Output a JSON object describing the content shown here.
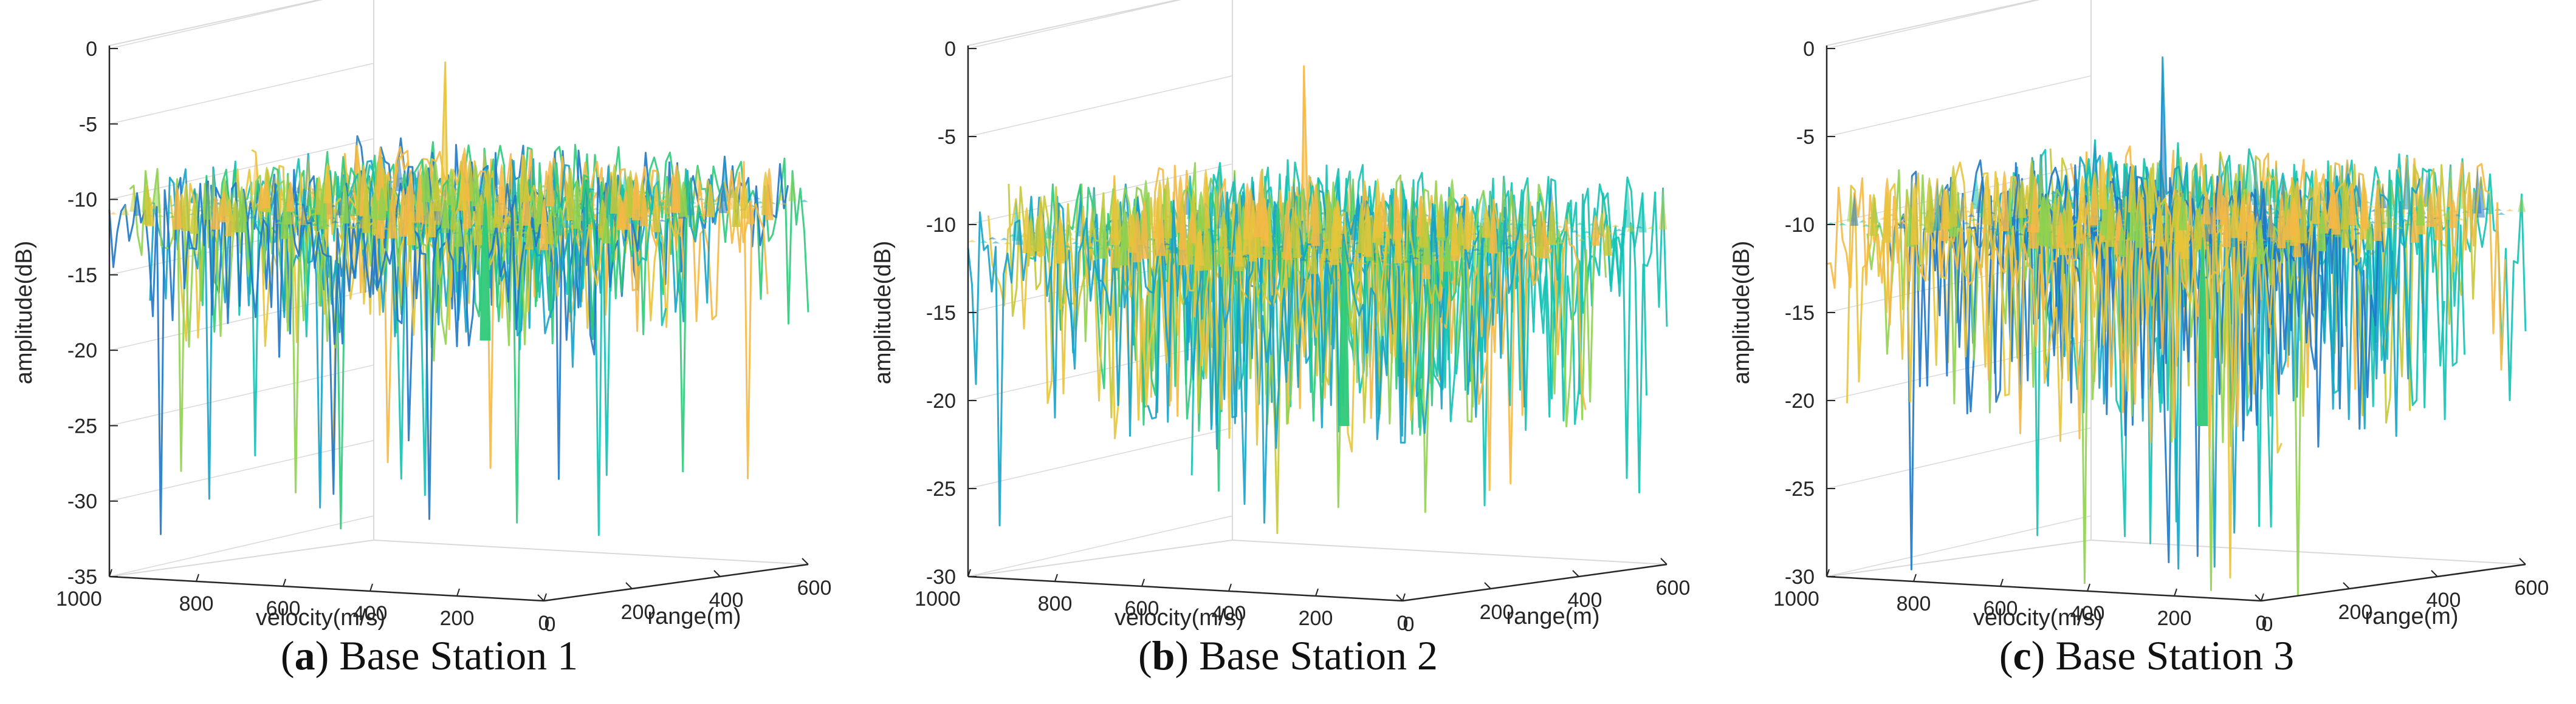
{
  "chart_data": [
    {
      "type": "surface3d",
      "caption_letter": "a",
      "caption_text": " Base Station 1",
      "zlabel": "amplitude(dB)",
      "xlabel": "velocity(m/s)",
      "ylabel": "range(m)",
      "zlim": [
        -35,
        0
      ],
      "z_ticks": [
        "0",
        "-5",
        "-10",
        "-15",
        "-20",
        "-25",
        "-30",
        "-35"
      ],
      "velocity_ticks": [
        "1000",
        "800",
        "600",
        "400",
        "200",
        "0"
      ],
      "range_ticks": [
        "0",
        "200",
        "400",
        "600"
      ],
      "surface": {
        "base_level": -8,
        "floor_range": [
          -20,
          -10
        ],
        "peak": -1.5,
        "deep_nulls": [
          -32,
          -30,
          -29,
          -28
        ]
      }
    },
    {
      "type": "surface3d",
      "caption_letter": "b",
      "caption_text": " Base Station 2",
      "zlabel": "amplitude(dB)",
      "xlabel": "velocity(m/s)",
      "ylabel": "range(m)",
      "zlim": [
        -30,
        0
      ],
      "z_ticks": [
        "0",
        "-5",
        "-10",
        "-15",
        "-20",
        "-25",
        "-30"
      ],
      "velocity_ticks": [
        "1000",
        "800",
        "600",
        "400",
        "200",
        "0"
      ],
      "range_ticks": [
        "0",
        "200",
        "400",
        "600"
      ],
      "surface": {
        "base_level": -8,
        "floor_range": [
          -22,
          -13
        ],
        "peak": -1.5,
        "deep_nulls": [
          -27,
          -26,
          -25
        ]
      }
    },
    {
      "type": "surface3d",
      "caption_letter": "c",
      "caption_text": " Base Station 3",
      "zlabel": "amplitude(dB)",
      "xlabel": "velocity(m/s)",
      "ylabel": "range(m)",
      "zlim": [
        -30,
        0
      ],
      "z_ticks": [
        "0",
        "-5",
        "-10",
        "-15",
        "-20",
        "-25",
        "-30"
      ],
      "velocity_ticks": [
        "1000",
        "800",
        "600",
        "400",
        "200",
        "0"
      ],
      "range_ticks": [
        "0",
        "200",
        "400",
        "600"
      ],
      "surface": {
        "base_level": -7,
        "floor_range": [
          -22,
          -12
        ],
        "peak": -1.0,
        "deep_nulls": [
          -30,
          -29,
          -28
        ]
      }
    }
  ],
  "colors": {
    "axis": "#262626",
    "grid": "#d9d9d9",
    "palette": [
      "#1f78c8",
      "#16a3c8",
      "#12c2b4",
      "#2fca7a",
      "#8fd14f",
      "#c8c838",
      "#e8c43a",
      "#f5b945"
    ]
  }
}
